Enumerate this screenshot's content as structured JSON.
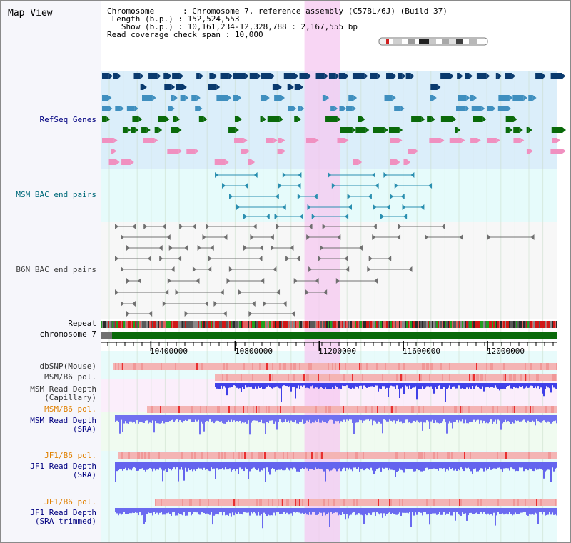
{
  "title": "Map View",
  "info": {
    "chromosome_key": "Chromosome",
    "chromosome_value": "Chromosome 7, reference assembly (C57BL/6J) (Build 37)",
    "length_key": "Length (b.p.)",
    "length_value": "152,524,553",
    "show_key": "Show (b.p.)",
    "show_value": "10,161,234-12,328,788 : 2,167,555 bp",
    "span_key": "Read coverage check span",
    "span_value": "10,000"
  },
  "tracks": {
    "refseq": "RefSeq Genes",
    "msm_bac": "MSM BAC end pairs",
    "b6n_bac": "B6N BAC end pairs",
    "repeat": "Repeat",
    "chromosome": "chromosome 7",
    "dbsnp": "dbSNP(Mouse)",
    "msm_b6_pol": "MSM/B6 pol.",
    "msm_depth_cap_1": "MSM Read Depth",
    "msm_depth_cap_2": "(Capillary)",
    "msm_b6_pol_2": "MSM/B6 pol.",
    "msm_depth_sra_1": "MSM Read Depth",
    "msm_depth_sra_2": "(SRA)",
    "jf1_b6_pol": "JF1/B6 pol.",
    "jf1_depth_sra_1": "JF1 Read Depth",
    "jf1_depth_sra_2": "(SRA)",
    "jf1_b6_pol_2": "JF1/B6 pol.",
    "jf1_depth_trim_1": "JF1 Read Depth",
    "jf1_depth_trim_2": "(SRA trimmed)"
  },
  "axis": {
    "ticks": [
      {
        "value": 10400000,
        "label": "10400000"
      },
      {
        "value": 10800000,
        "label": "10800000"
      },
      {
        "value": 11200000,
        "label": "11200000"
      },
      {
        "value": 11600000,
        "label": "11600000"
      },
      {
        "value": 12000000,
        "label": "12000000"
      }
    ],
    "start": 10161234,
    "end": 12328788
  },
  "highlight": {
    "start": 11130000,
    "end": 11300000
  },
  "colors": {
    "refseq_dark": "#0a3a6e",
    "refseq_mid": "#3f8fbf",
    "refseq_green": "#0a6a0a",
    "refseq_pink": "#f090c0",
    "msm_bac": "#2a8fb0",
    "b6n_bac": "#707070",
    "chromosome": "#0a6a0a",
    "highlight": "#f5c8f0",
    "depth_blue": "#5050f0",
    "pol_pink": "#f4b4b4",
    "pol_red": "#e83030",
    "label_navy": "#000080",
    "label_teal": "#006a7a",
    "label_orange": "#e08000"
  },
  "icons": {
    "chromosome_ideogram": "chromosome-ideogram-icon"
  }
}
